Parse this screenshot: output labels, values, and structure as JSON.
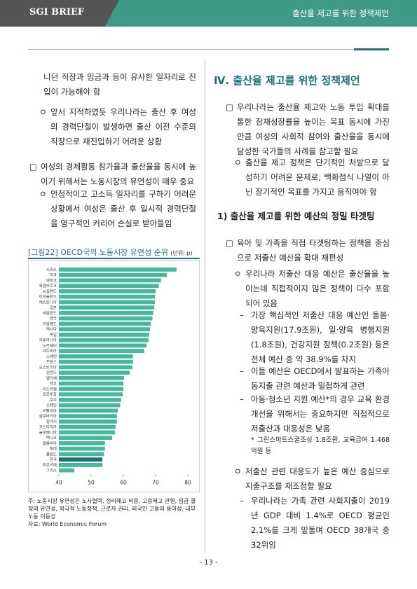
{
  "header": {
    "brand": "SGI BRIEF",
    "section": "출산율 제고를 위한 정책제언"
  },
  "left": [
    {
      "marker": "",
      "text": "니던 직장과 임금과 등이 유사한 일자리로 진입이 가능해야 함"
    },
    {
      "marker": "ㅇ",
      "text": "앞서 지적하였듯 우리나라는 출산 후 여성의 경력단절이 발생하면 출산 이전 수준의 직장으로 재진입하기 어려운 상황"
    },
    {
      "marker": "□",
      "text": "여성의 경제활동 참가율과 출산율을 동시에 높이기 위해서는 노동시장의 유연성이 매우 중요"
    },
    {
      "marker": "ㅇ",
      "text": "안정적이고 고소득 일자리를 구하기 어려운 상황에서 여성은 출산 후 일시적 경력단절을 영구적인 커리어 손실로 받아들임"
    }
  ],
  "figure": {
    "title": "[그림22] OECD국의 노동시장 유연성 순위",
    "unit": "(단위: p)",
    "note": "주: 노동시장 유연성은 노사협력, 정리해고 비용, 고용해고 관행, 임금 결정의 유연성, 적극적 노동정책, 근로자 권리, 외국인 고용의 용이성, 내부 노동 이동성",
    "source": "자료: World Economic Forum"
  },
  "chart_data": {
    "type": "hbar",
    "categories": [
      "스위스",
      "미국",
      "덴마크",
      "룩셈부르크",
      "뉴질랜드",
      "아이슬란드",
      "에스토니아",
      "일본",
      "네덜란드",
      "영국",
      "아일랜드",
      "캐나다",
      "독일",
      "리투아니아",
      "노르웨이",
      "라트비아",
      "스웨덴",
      "프랑스",
      "오스트리아",
      "핀란드",
      "벨기에",
      "체코",
      "이스라엘",
      "포르투갈",
      "호주",
      "스페인",
      "이탈리아",
      "슬로바키아",
      "헝가리",
      "코스타리카",
      "슬로베니아",
      "멕시코",
      "콜롬비아",
      "칠레",
      "폴란드",
      "한국",
      "튀르키예",
      "그리스"
    ],
    "values": [
      76.5,
      73.5,
      71.7,
      71,
      70,
      69.8,
      69.8,
      69.6,
      69.3,
      69,
      68.5,
      68.3,
      68,
      67.8,
      67.2,
      66.5,
      63,
      63,
      62.8,
      62,
      60.2,
      60,
      60,
      59.8,
      59.3,
      59,
      58.3,
      58,
      58,
      57.6,
      57.4,
      56.5,
      54.3,
      54.3,
      54,
      53.5,
      53.5,
      44.8
    ],
    "color": "#45b99b",
    "highlight_color": "#1f6e78",
    "highlight_index": 35,
    "xlim": [
      40,
      80
    ],
    "xticks": [
      40,
      50,
      60,
      70,
      80
    ]
  },
  "right": {
    "heading": "Ⅳ. 출산율 제고를 위한 정책제언",
    "subheading": "1) 출산율 제고를 위한 예산의 정밀 타겟팅",
    "items": [
      {
        "marker": "□",
        "text": "우리나라는 출산율 제고와 노동 투입 확대를 통한 잠재성장률을 높이는 목표 동시에 가진 만큼 여성의 사회적 참여와 출산율을 동시에 달성한 국가들의 사례를 참고할 필요"
      },
      {
        "marker": "ㅇ",
        "text": "출산율 제고 정책은 단기적인 처방으로 달성하기 어려운 문제로, 백화점식 나열이 아닌 장기적인 목표를 가지고 움직여야 함"
      },
      {
        "marker": "□",
        "text": "육아 및 가족을 직접 타겟팅하는 정책을 중심으로 저출산 예산을 확대 재편성"
      },
      {
        "marker": "ㅇ",
        "text": "우리나라 저출산 대응 예산은 출산율을 높이는데 직접적이지 않은 정책이 다수 포함되어 있음"
      },
      {
        "marker": "–",
        "text": "가장 핵심적인 저출산 대응 예산인 돌봄·양육지원(17.9조원), 일·양육 병행지원(1.8조원), 건강지원 정책(0.2조원) 등은 전체 예산 중 약 38.9%를 차지"
      },
      {
        "marker": "–",
        "text": "이들 예산은 OECD에서 발표하는 가족아동지출 관련 예산과 밀접하게 관련"
      },
      {
        "marker": "–",
        "text": "아동·청소년 지원 예산*의 경우 교육 환경 개선을 위해서는 중요하지만 직접적으로 저출산과 대응성은 낮음"
      },
      {
        "marker": "",
        "text": "* 그린스마트스쿨조성 1.8조원, 교육급여 1.468억원 등"
      },
      {
        "marker": "ㅇ",
        "text": "저출산 관련 대응도가 높은 예산 중심으로 지출구조를 재조정할 필요"
      },
      {
        "marker": "–",
        "text": "우리나라는 가족 관련 사회지출이 2019년 GDP 대비 1.4%로 OECD 평균인 2.1%를 크게 밑돌며 OECD 38개국 중 32위임"
      }
    ]
  },
  "footer": {
    "page": "- 13 -"
  }
}
